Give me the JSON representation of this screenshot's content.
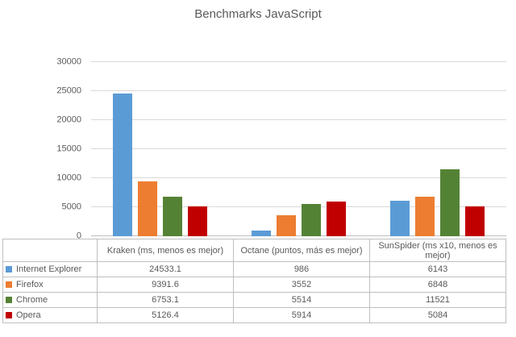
{
  "title": "Benchmarks JavaScript",
  "colors": {
    "background": "#FFFFFF",
    "text": "#595959",
    "gridline": "#D9D9D9",
    "table_border": "#BFBFBF",
    "series": [
      "#5B9BD5",
      "#ED7D31",
      "#548235",
      "#C00000"
    ]
  },
  "chart_data": {
    "type": "bar",
    "title": "Benchmarks JavaScript",
    "categories": [
      "Kraken (ms, menos es mejor)",
      "Octane (puntos, más es mejor)",
      "SunSpider (ms x10, menos es mejor)"
    ],
    "series": [
      {
        "name": "Internet Explorer",
        "color": "#5B9BD5",
        "values": [
          24533.1,
          986,
          6143
        ]
      },
      {
        "name": "Firefox",
        "color": "#ED7D31",
        "values": [
          9391.6,
          3552,
          6848
        ]
      },
      {
        "name": "Chrome",
        "color": "#548235",
        "values": [
          6753.1,
          5514,
          11521
        ]
      },
      {
        "name": "Opera",
        "color": "#C00000",
        "values": [
          5126.4,
          5914,
          5084
        ]
      }
    ],
    "xlabel": "",
    "ylabel": "",
    "y_axis": {
      "min": 0,
      "max": 30000,
      "step": 5000,
      "ticks": [
        "0",
        "5000",
        "10000",
        "15000",
        "20000",
        "25000",
        "30000"
      ]
    },
    "grid": true,
    "legend_position": "data-table-left-column"
  }
}
